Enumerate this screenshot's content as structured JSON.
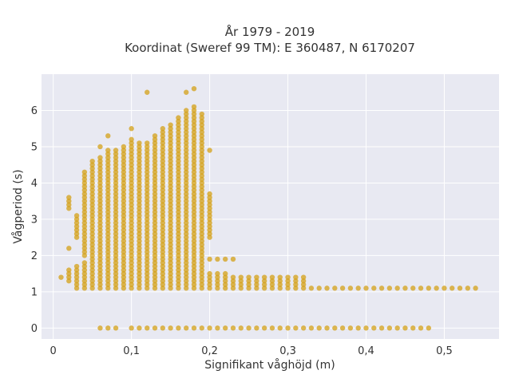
{
  "chart_data": {
    "type": "scatter",
    "title_lines": [
      "År 1979 - 2019",
      "Koordinat (Sweref 99 TM): E 360487, N 6170207"
    ],
    "xlabel": "Signifikant våghöjd (m)",
    "ylabel": "Vågperiod (s)",
    "xlim": [
      -0.015,
      0.57
    ],
    "ylim": [
      -0.3,
      7.0
    ],
    "xticks": [
      0,
      0.1,
      0.2,
      0.3,
      0.4,
      0.5
    ],
    "xtick_labels": [
      "0",
      "0,1",
      "0,2",
      "0,3",
      "0,4",
      "0,5"
    ],
    "yticks": [
      0,
      1,
      2,
      3,
      4,
      5,
      6
    ],
    "ytick_labels": [
      "0",
      "1",
      "2",
      "3",
      "4",
      "5",
      "6"
    ],
    "grid": true,
    "legend": "none",
    "colors": {
      "marker": "#d4a017",
      "plot_bg": "#e8e9f2",
      "grid": "#ffffff"
    },
    "x_step": 0.01,
    "y_step": 0.1,
    "columns": [
      {
        "x": 0.01,
        "y_ranges": [
          [
            1.4,
            1.4
          ]
        ]
      },
      {
        "x": 0.02,
        "y_ranges": [
          [
            1.3,
            1.6
          ],
          [
            2.2,
            2.2
          ],
          [
            3.3,
            3.6
          ]
        ]
      },
      {
        "x": 0.03,
        "y_ranges": [
          [
            1.1,
            1.7
          ],
          [
            2.5,
            3.1
          ]
        ]
      },
      {
        "x": 0.04,
        "y_ranges": [
          [
            1.1,
            1.8
          ],
          [
            2.0,
            4.3
          ]
        ]
      },
      {
        "x": 0.05,
        "y_ranges": [
          [
            1.1,
            1.8
          ],
          [
            1.9,
            4.6
          ]
        ]
      },
      {
        "x": 0.06,
        "y_ranges": [
          [
            0.0,
            0.0
          ],
          [
            1.1,
            4.7
          ],
          [
            5.0,
            5.0
          ]
        ]
      },
      {
        "x": 0.07,
        "y_ranges": [
          [
            0.0,
            0.0
          ],
          [
            1.1,
            4.9
          ],
          [
            5.3,
            5.3
          ]
        ]
      },
      {
        "x": 0.08,
        "y_ranges": [
          [
            0.0,
            0.0
          ],
          [
            1.1,
            4.9
          ]
        ]
      },
      {
        "x": 0.09,
        "y_ranges": [
          [
            1.1,
            5.0
          ]
        ]
      },
      {
        "x": 0.1,
        "y_ranges": [
          [
            0.0,
            0.0
          ],
          [
            1.1,
            5.2
          ],
          [
            5.5,
            5.5
          ]
        ]
      },
      {
        "x": 0.11,
        "y_ranges": [
          [
            0.0,
            0.0
          ],
          [
            1.1,
            5.1
          ]
        ]
      },
      {
        "x": 0.12,
        "y_ranges": [
          [
            0.0,
            0.0
          ],
          [
            1.1,
            5.1
          ],
          [
            6.5,
            6.5
          ]
        ]
      },
      {
        "x": 0.13,
        "y_ranges": [
          [
            0.0,
            0.0
          ],
          [
            1.1,
            5.3
          ]
        ]
      },
      {
        "x": 0.14,
        "y_ranges": [
          [
            0.0,
            0.0
          ],
          [
            1.1,
            5.5
          ]
        ]
      },
      {
        "x": 0.15,
        "y_ranges": [
          [
            0.0,
            0.0
          ],
          [
            1.1,
            5.6
          ]
        ]
      },
      {
        "x": 0.16,
        "y_ranges": [
          [
            0.0,
            0.0
          ],
          [
            1.1,
            5.8
          ]
        ]
      },
      {
        "x": 0.17,
        "y_ranges": [
          [
            0.0,
            0.0
          ],
          [
            1.1,
            6.0
          ],
          [
            6.5,
            6.5
          ]
        ]
      },
      {
        "x": 0.18,
        "y_ranges": [
          [
            0.0,
            0.0
          ],
          [
            1.1,
            6.1
          ],
          [
            6.6,
            6.6
          ]
        ]
      },
      {
        "x": 0.19,
        "y_ranges": [
          [
            0.0,
            0.0
          ],
          [
            1.1,
            5.9
          ]
        ]
      },
      {
        "x": 0.2,
        "y_ranges": [
          [
            0.0,
            0.0
          ],
          [
            1.1,
            1.5
          ],
          [
            1.9,
            1.9
          ],
          [
            2.5,
            3.7
          ],
          [
            4.9,
            4.9
          ]
        ]
      },
      {
        "x": 0.21,
        "y_ranges": [
          [
            0.0,
            0.0
          ],
          [
            1.1,
            1.5
          ],
          [
            1.9,
            1.9
          ]
        ]
      },
      {
        "x": 0.22,
        "y_ranges": [
          [
            0.0,
            0.0
          ],
          [
            1.1,
            1.5
          ],
          [
            1.9,
            1.9
          ]
        ]
      },
      {
        "x": 0.23,
        "y_ranges": [
          [
            0.0,
            0.0
          ],
          [
            1.1,
            1.4
          ],
          [
            1.9,
            1.9
          ]
        ]
      },
      {
        "x": 0.24,
        "y_ranges": [
          [
            0.0,
            0.0
          ],
          [
            1.1,
            1.4
          ]
        ]
      },
      {
        "x": 0.25,
        "y_ranges": [
          [
            0.0,
            0.0
          ],
          [
            1.1,
            1.4
          ]
        ]
      },
      {
        "x": 0.26,
        "y_ranges": [
          [
            0.0,
            0.0
          ],
          [
            1.1,
            1.4
          ]
        ]
      },
      {
        "x": 0.27,
        "y_ranges": [
          [
            0.0,
            0.0
          ],
          [
            1.1,
            1.4
          ]
        ]
      },
      {
        "x": 0.28,
        "y_ranges": [
          [
            0.0,
            0.0
          ],
          [
            1.1,
            1.4
          ]
        ]
      },
      {
        "x": 0.29,
        "y_ranges": [
          [
            0.0,
            0.0
          ],
          [
            1.1,
            1.4
          ]
        ]
      },
      {
        "x": 0.3,
        "y_ranges": [
          [
            0.0,
            0.0
          ],
          [
            1.1,
            1.4
          ]
        ]
      },
      {
        "x": 0.31,
        "y_ranges": [
          [
            0.0,
            0.0
          ],
          [
            1.1,
            1.4
          ]
        ]
      },
      {
        "x": 0.32,
        "y_ranges": [
          [
            0.0,
            0.0
          ],
          [
            1.1,
            1.4
          ]
        ]
      },
      {
        "x": 0.33,
        "y_ranges": [
          [
            0.0,
            0.0
          ],
          [
            1.1,
            1.1
          ]
        ]
      },
      {
        "x": 0.34,
        "y_ranges": [
          [
            0.0,
            0.0
          ],
          [
            1.1,
            1.1
          ]
        ]
      },
      {
        "x": 0.35,
        "y_ranges": [
          [
            0.0,
            0.0
          ],
          [
            1.1,
            1.1
          ]
        ]
      },
      {
        "x": 0.36,
        "y_ranges": [
          [
            0.0,
            0.0
          ],
          [
            1.1,
            1.1
          ]
        ]
      },
      {
        "x": 0.37,
        "y_ranges": [
          [
            0.0,
            0.0
          ],
          [
            1.1,
            1.1
          ]
        ]
      },
      {
        "x": 0.38,
        "y_ranges": [
          [
            0.0,
            0.0
          ],
          [
            1.1,
            1.1
          ]
        ]
      },
      {
        "x": 0.39,
        "y_ranges": [
          [
            0.0,
            0.0
          ],
          [
            1.1,
            1.1
          ]
        ]
      },
      {
        "x": 0.4,
        "y_ranges": [
          [
            0.0,
            0.0
          ],
          [
            1.1,
            1.1
          ]
        ]
      },
      {
        "x": 0.41,
        "y_ranges": [
          [
            0.0,
            0.0
          ],
          [
            1.1,
            1.1
          ]
        ]
      },
      {
        "x": 0.42,
        "y_ranges": [
          [
            0.0,
            0.0
          ],
          [
            1.1,
            1.1
          ]
        ]
      },
      {
        "x": 0.43,
        "y_ranges": [
          [
            0.0,
            0.0
          ],
          [
            1.1,
            1.1
          ]
        ]
      },
      {
        "x": 0.44,
        "y_ranges": [
          [
            0.0,
            0.0
          ],
          [
            1.1,
            1.1
          ]
        ]
      },
      {
        "x": 0.45,
        "y_ranges": [
          [
            0.0,
            0.0
          ],
          [
            1.1,
            1.1
          ]
        ]
      },
      {
        "x": 0.46,
        "y_ranges": [
          [
            0.0,
            0.0
          ],
          [
            1.1,
            1.1
          ]
        ]
      },
      {
        "x": 0.47,
        "y_ranges": [
          [
            0.0,
            0.0
          ],
          [
            1.1,
            1.1
          ]
        ]
      },
      {
        "x": 0.48,
        "y_ranges": [
          [
            0.0,
            0.0
          ],
          [
            1.1,
            1.1
          ]
        ]
      },
      {
        "x": 0.49,
        "y_ranges": [
          [
            1.1,
            1.1
          ]
        ]
      },
      {
        "x": 0.5,
        "y_ranges": [
          [
            1.1,
            1.1
          ]
        ]
      },
      {
        "x": 0.51,
        "y_ranges": [
          [
            1.1,
            1.1
          ]
        ]
      },
      {
        "x": 0.52,
        "y_ranges": [
          [
            1.1,
            1.1
          ]
        ]
      },
      {
        "x": 0.53,
        "y_ranges": [
          [
            1.1,
            1.1
          ]
        ]
      },
      {
        "x": 0.54,
        "y_ranges": [
          [
            1.1,
            1.1
          ]
        ]
      }
    ]
  }
}
